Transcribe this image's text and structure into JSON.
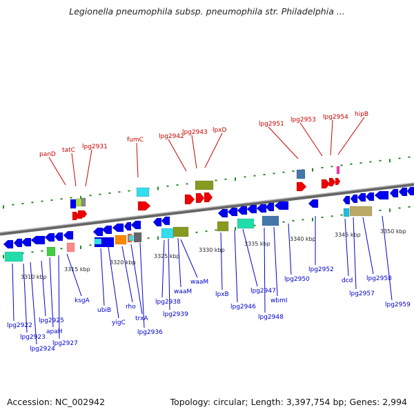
{
  "title": "Legionella pneumophila subsp. pneumophila str. Philadelphia ...",
  "footer": {
    "accession": "Accession: NC_002942",
    "summary": "Topology: circular; Length: 3,397,754 bp; Genes: 2,994"
  },
  "colors": {
    "forward_labels": "#cc0000",
    "reverse_labels": "#0000cc",
    "backbone": "#888888",
    "ticks": "#228822"
  },
  "scale_labels": [
    "3310 kbp",
    "3315 kbp",
    "3320 kbp",
    "3325 kbp",
    "3330 kbp",
    "3335 kbp",
    "3340 kbp",
    "3345 kbp",
    "3350 kbp"
  ],
  "forward_genes": [
    "panD",
    "tatC",
    "lpg2931",
    "fumC",
    "lpg2942",
    "lpg2943",
    "lpxD",
    "lpg2951",
    "lpg2953",
    "lpg2954",
    "hipB"
  ],
  "reverse_genes": [
    "lpg2922",
    "lpg2923",
    "lpg2924",
    "lpg2925",
    "apaH",
    "lpg2927",
    "ksgA",
    "ubiB",
    "yigC",
    "rho",
    "trxA",
    "lpg2936",
    "lpg2938",
    "lpg2939",
    "waaM",
    "waaM",
    "lpxB",
    "lpg2946",
    "lpg2947",
    "lpg2948",
    "wbmI",
    "lpg2950",
    "lpg2952",
    "dcd",
    "lpg2957",
    "lpg2958",
    "lpg2959"
  ]
}
